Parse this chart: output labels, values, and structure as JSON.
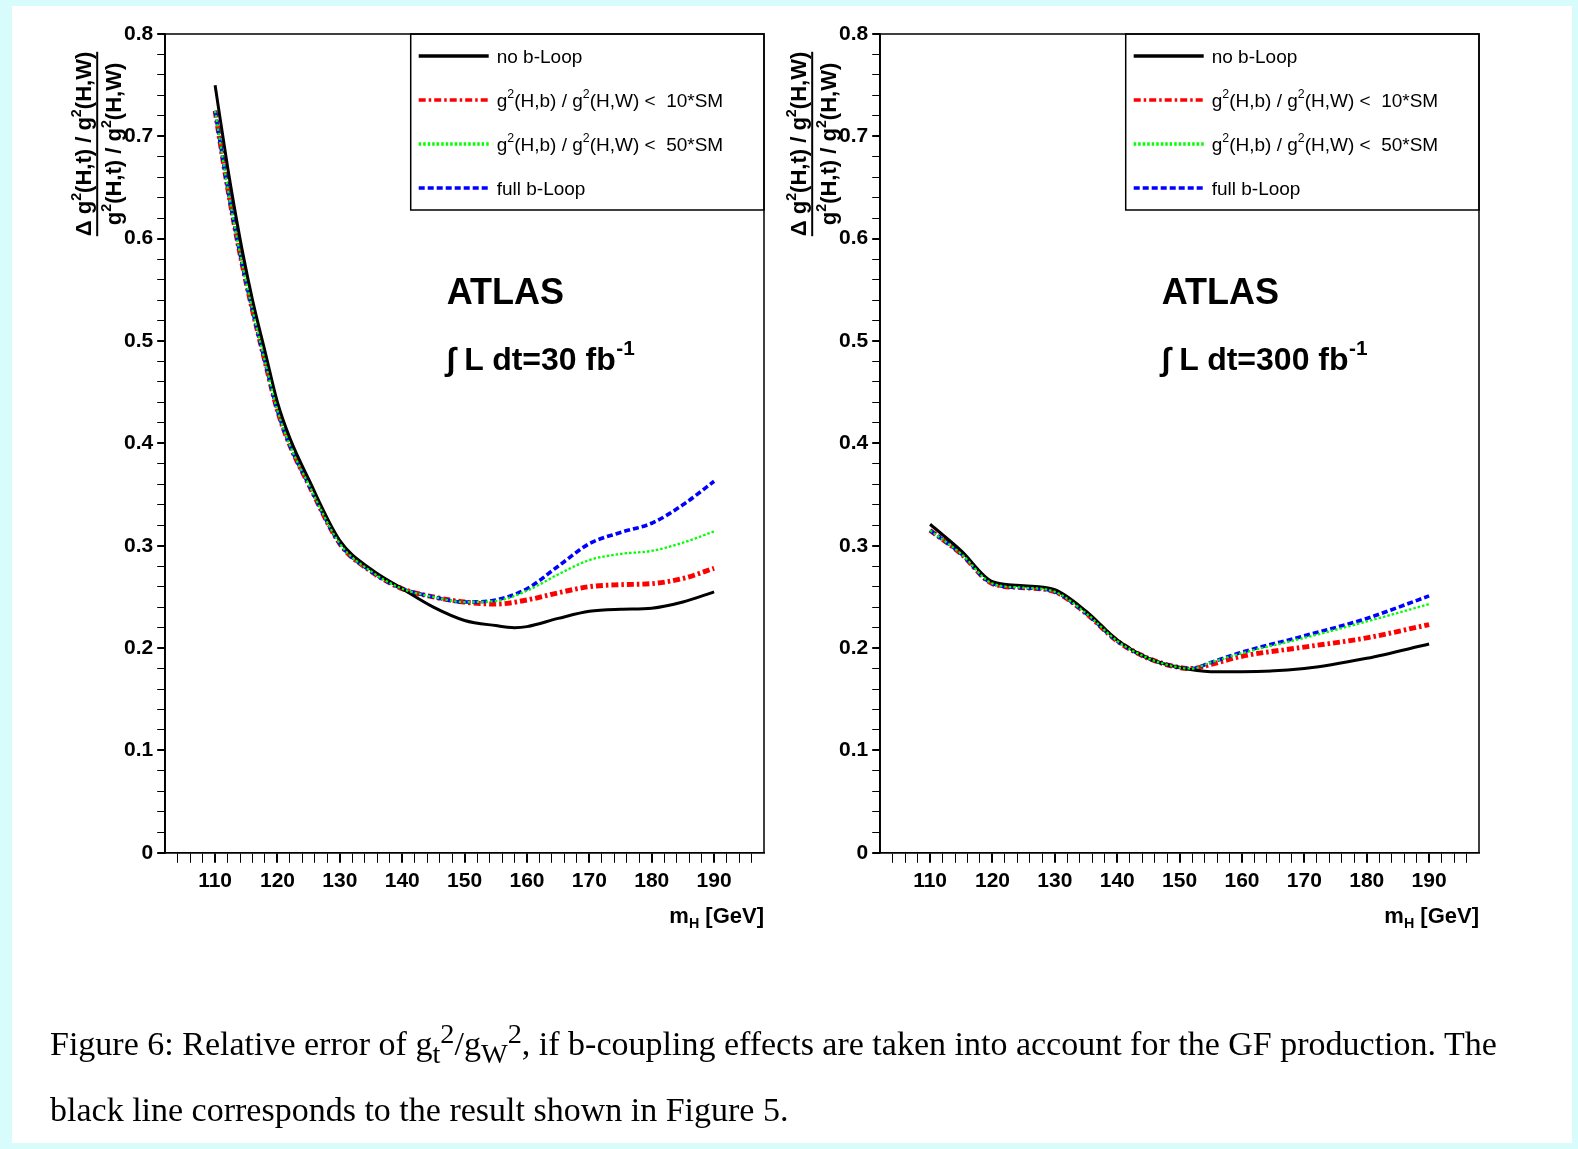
{
  "chart_data": [
    {
      "type": "line",
      "xlabel": "m$_{H}$ [GeV]",
      "ylabel": "Δ g$^{2}$(H,t) / g$^{2}$(H,W)\ng$^{2}$(H,t) / g$^{2}$(H,W)",
      "legend": "top right",
      "grid": false,
      "marker": "none",
      "xlim": [
        102,
        198
      ],
      "ylim": [
        0,
        0.8
      ],
      "xticks": [
        {
          "value": 104,
          "label": null
        },
        {
          "value": 106,
          "label": null
        },
        {
          "value": 108,
          "label": null
        },
        110,
        {
          "value": 112,
          "label": null
        },
        {
          "value": 114,
          "label": null
        },
        {
          "value": 116,
          "label": null
        },
        {
          "value": 118,
          "label": null
        },
        120,
        {
          "value": 122,
          "label": null
        },
        {
          "value": 124,
          "label": null
        },
        {
          "value": 126,
          "label": null
        },
        {
          "value": 128,
          "label": null
        },
        130,
        {
          "value": 132,
          "label": null
        },
        {
          "value": 134,
          "label": null
        },
        {
          "value": 136,
          "label": null
        },
        {
          "value": 138,
          "label": null
        },
        140,
        {
          "value": 142,
          "label": null
        },
        {
          "value": 144,
          "label": null
        },
        {
          "value": 146,
          "label": null
        },
        {
          "value": 148,
          "label": null
        },
        150,
        {
          "value": 152,
          "label": null
        },
        {
          "value": 154,
          "label": null
        },
        {
          "value": 156,
          "label": null
        },
        {
          "value": 158,
          "label": null
        },
        160,
        {
          "value": 162,
          "label": null
        },
        {
          "value": 164,
          "label": null
        },
        {
          "value": 166,
          "label": null
        },
        {
          "value": 168,
          "label": null
        },
        170,
        {
          "value": 172,
          "label": null
        },
        {
          "value": 174,
          "label": null
        },
        {
          "value": 176,
          "label": null
        },
        {
          "value": 178,
          "label": null
        },
        180,
        {
          "value": 182,
          "label": null
        },
        {
          "value": 184,
          "label": null
        },
        {
          "value": 186,
          "label": null
        },
        {
          "value": 188,
          "label": null
        },
        190,
        {
          "value": 192,
          "label": null
        },
        {
          "value": 194,
          "label": null
        },
        {
          "value": 196,
          "label": null
        }
      ],
      "yticks": [
        0,
        {
          "value": 0.02,
          "label": null
        },
        {
          "value": 0.04,
          "label": null
        },
        {
          "value": 0.06,
          "label": null
        },
        {
          "value": 0.08,
          "label": null
        },
        0.1,
        {
          "value": 0.12,
          "label": null
        },
        {
          "value": 0.14,
          "label": null
        },
        {
          "value": 0.16,
          "label": null
        },
        {
          "value": 0.18,
          "label": null
        },
        0.2,
        {
          "value": 0.22,
          "label": null
        },
        {
          "value": 0.24,
          "label": null
        },
        {
          "value": 0.26,
          "label": null
        },
        {
          "value": 0.28,
          "label": null
        },
        0.3,
        {
          "value": 0.32,
          "label": null
        },
        {
          "value": 0.34,
          "label": null
        },
        {
          "value": 0.36,
          "label": null
        },
        {
          "value": 0.38,
          "label": null
        },
        0.4,
        {
          "value": 0.42,
          "label": null
        },
        {
          "value": 0.44,
          "label": null
        },
        {
          "value": 0.46,
          "label": null
        },
        {
          "value": 0.48,
          "label": null
        },
        0.5,
        {
          "value": 0.52,
          "label": null
        },
        {
          "value": 0.54,
          "label": null
        },
        {
          "value": 0.56,
          "label": null
        },
        {
          "value": 0.58,
          "label": null
        },
        0.6,
        {
          "value": 0.62,
          "label": null
        },
        {
          "value": 0.64,
          "label": null
        },
        {
          "value": 0.66,
          "label": null
        },
        {
          "value": 0.68,
          "label": null
        },
        0.7,
        {
          "value": 0.72,
          "label": null
        },
        {
          "value": 0.74,
          "label": null
        },
        {
          "value": 0.76,
          "label": null
        },
        {
          "value": 0.78,
          "label": null
        },
        0.8
      ],
      "annotations": [
        "ATLAS",
        "∫ L dt=30 fb$^{-1}$",
        "Figure 6: Relative error of g$_{t}$$^{2}$/g$_{W}$$^{2}$, if b-coupling effects are taken into account for the GF production. The black line corresponds to the result shown in Figure 5."
      ],
      "series": [
        {
          "name": "no b-Loop",
          "color": "#000000",
          "line_style": "solid",
          "x": [
            110,
            112,
            114,
            116,
            118,
            120,
            122,
            125,
            130,
            135,
            140,
            145,
            150,
            155,
            158,
            160,
            165,
            170,
            175,
            180,
            185,
            190
          ],
          "values": [
            0.75,
            0.67,
            0.6,
            0.54,
            0.49,
            0.44,
            0.405,
            0.365,
            0.305,
            0.277,
            0.258,
            0.24,
            0.227,
            0.222,
            0.22,
            0.221,
            0.229,
            0.236,
            0.238,
            0.239,
            0.245,
            0.255
          ]
        },
        {
          "name": "g$^{2}$(H,b) / g$^{2}$(H,W) <  10*SM",
          "color": "#ff0000",
          "line_style": "dashdot",
          "x": [
            110,
            112,
            114,
            116,
            118,
            120,
            122,
            125,
            130,
            135,
            140,
            145,
            150,
            155,
            160,
            165,
            170,
            175,
            180,
            185,
            190
          ],
          "values": [
            0.725,
            0.65,
            0.585,
            0.53,
            0.48,
            0.432,
            0.398,
            0.36,
            0.302,
            0.275,
            0.258,
            0.25,
            0.245,
            0.243,
            0.247,
            0.254,
            0.26,
            0.262,
            0.263,
            0.268,
            0.278
          ]
        },
        {
          "name": "g$^{2}$(H,b) / g$^{2}$(H,W) <  50*SM",
          "color": "#00ff00",
          "line_style": "dotted",
          "x": [
            110,
            112,
            114,
            116,
            118,
            120,
            122,
            125,
            130,
            135,
            140,
            145,
            150,
            155,
            160,
            165,
            170,
            175,
            180,
            185,
            190
          ],
          "values": [
            0.725,
            0.65,
            0.585,
            0.53,
            0.48,
            0.432,
            0.398,
            0.36,
            0.302,
            0.275,
            0.258,
            0.25,
            0.245,
            0.246,
            0.256,
            0.272,
            0.286,
            0.292,
            0.295,
            0.303,
            0.314
          ]
        },
        {
          "name": "full b-Loop",
          "color": "#0000ff",
          "line_style": "dashed",
          "x": [
            110,
            112,
            114,
            116,
            118,
            120,
            122,
            125,
            130,
            135,
            140,
            145,
            150,
            155,
            160,
            165,
            170,
            175,
            180,
            185,
            190
          ],
          "values": [
            0.725,
            0.65,
            0.585,
            0.53,
            0.48,
            0.432,
            0.398,
            0.36,
            0.302,
            0.275,
            0.258,
            0.25,
            0.245,
            0.247,
            0.258,
            0.28,
            0.302,
            0.313,
            0.322,
            0.34,
            0.363
          ]
        }
      ]
    },
    {
      "type": "line",
      "xlabel": "m$_{H}$ [GeV]",
      "ylabel": "Δ g$^{2}$(H,t) / g$^{2}$(H,W)\ng$^{2}$(H,t) / g$^{2}$(H,W)",
      "legend": "top right",
      "grid": false,
      "marker": "none",
      "xlim": [
        102,
        198
      ],
      "ylim": [
        0,
        0.8
      ],
      "xticks": [
        {
          "value": 104,
          "label": null
        },
        {
          "value": 106,
          "label": null
        },
        {
          "value": 108,
          "label": null
        },
        110,
        {
          "value": 112,
          "label": null
        },
        {
          "value": 114,
          "label": null
        },
        {
          "value": 116,
          "label": null
        },
        {
          "value": 118,
          "label": null
        },
        120,
        {
          "value": 122,
          "label": null
        },
        {
          "value": 124,
          "label": null
        },
        {
          "value": 126,
          "label": null
        },
        {
          "value": 128,
          "label": null
        },
        130,
        {
          "value": 132,
          "label": null
        },
        {
          "value": 134,
          "label": null
        },
        {
          "value": 136,
          "label": null
        },
        {
          "value": 138,
          "label": null
        },
        140,
        {
          "value": 142,
          "label": null
        },
        {
          "value": 144,
          "label": null
        },
        {
          "value": 146,
          "label": null
        },
        {
          "value": 148,
          "label": null
        },
        150,
        {
          "value": 152,
          "label": null
        },
        {
          "value": 154,
          "label": null
        },
        {
          "value": 156,
          "label": null
        },
        {
          "value": 158,
          "label": null
        },
        160,
        {
          "value": 162,
          "label": null
        },
        {
          "value": 164,
          "label": null
        },
        {
          "value": 166,
          "label": null
        },
        {
          "value": 168,
          "label": null
        },
        170,
        {
          "value": 172,
          "label": null
        },
        {
          "value": 174,
          "label": null
        },
        {
          "value": 176,
          "label": null
        },
        {
          "value": 178,
          "label": null
        },
        180,
        {
          "value": 182,
          "label": null
        },
        {
          "value": 184,
          "label": null
        },
        {
          "value": 186,
          "label": null
        },
        {
          "value": 188,
          "label": null
        },
        190,
        {
          "value": 192,
          "label": null
        },
        {
          "value": 194,
          "label": null
        },
        {
          "value": 196,
          "label": null
        }
      ],
      "yticks": [
        0,
        {
          "value": 0.02,
          "label": null
        },
        {
          "value": 0.04,
          "label": null
        },
        {
          "value": 0.06,
          "label": null
        },
        {
          "value": 0.08,
          "label": null
        },
        0.1,
        {
          "value": 0.12,
          "label": null
        },
        {
          "value": 0.14,
          "label": null
        },
        {
          "value": 0.16,
          "label": null
        },
        {
          "value": 0.18,
          "label": null
        },
        0.2,
        {
          "value": 0.22,
          "label": null
        },
        {
          "value": 0.24,
          "label": null
        },
        {
          "value": 0.26,
          "label": null
        },
        {
          "value": 0.28,
          "label": null
        },
        0.3,
        {
          "value": 0.32,
          "label": null
        },
        {
          "value": 0.34,
          "label": null
        },
        {
          "value": 0.36,
          "label": null
        },
        {
          "value": 0.38,
          "label": null
        },
        0.4,
        {
          "value": 0.42,
          "label": null
        },
        {
          "value": 0.44,
          "label": null
        },
        {
          "value": 0.46,
          "label": null
        },
        {
          "value": 0.48,
          "label": null
        },
        0.5,
        {
          "value": 0.52,
          "label": null
        },
        {
          "value": 0.54,
          "label": null
        },
        {
          "value": 0.56,
          "label": null
        },
        {
          "value": 0.58,
          "label": null
        },
        0.6,
        {
          "value": 0.62,
          "label": null
        },
        {
          "value": 0.64,
          "label": null
        },
        {
          "value": 0.66,
          "label": null
        },
        {
          "value": 0.68,
          "label": null
        },
        0.7,
        {
          "value": 0.72,
          "label": null
        },
        {
          "value": 0.74,
          "label": null
        },
        {
          "value": 0.76,
          "label": null
        },
        {
          "value": 0.78,
          "label": null
        },
        0.8
      ],
      "annotations": [
        "ATLAS",
        "∫ L dt=300 fb$^{-1}$"
      ],
      "series": [
        {
          "name": "no b-Loop",
          "color": "#000000",
          "line_style": "solid",
          "x": [
            110,
            115,
            120,
            125,
            130,
            135,
            140,
            145,
            150,
            155,
            160,
            170,
            180,
            190
          ],
          "values": [
            0.321,
            0.295,
            0.265,
            0.261,
            0.257,
            0.236,
            0.208,
            0.19,
            0.181,
            0.177,
            0.177,
            0.18,
            0.19,
            0.204
          ]
        },
        {
          "name": "g$^{2}$(H,b) / g$^{2}$(H,W) <  10*SM",
          "color": "#ff0000",
          "line_style": "dashdot",
          "x": [
            110,
            115,
            120,
            125,
            130,
            135,
            140,
            145,
            150,
            152,
            155,
            160,
            170,
            180,
            190
          ],
          "values": [
            0.315,
            0.292,
            0.263,
            0.259,
            0.255,
            0.234,
            0.207,
            0.19,
            0.181,
            0.18,
            0.184,
            0.192,
            0.201,
            0.21,
            0.223
          ]
        },
        {
          "name": "g$^{2}$(H,b) / g$^{2}$(H,W) <  50*SM",
          "color": "#00ff00",
          "line_style": "dotted",
          "x": [
            110,
            115,
            120,
            125,
            130,
            135,
            140,
            145,
            150,
            152,
            155,
            160,
            170,
            180,
            190
          ],
          "values": [
            0.315,
            0.292,
            0.263,
            0.259,
            0.255,
            0.234,
            0.207,
            0.19,
            0.181,
            0.18,
            0.186,
            0.195,
            0.21,
            0.226,
            0.243
          ]
        },
        {
          "name": "full b-Loop",
          "color": "#0000ff",
          "line_style": "dashed",
          "x": [
            110,
            115,
            120,
            125,
            130,
            135,
            140,
            145,
            150,
            152,
            155,
            160,
            170,
            180,
            190
          ],
          "values": [
            0.315,
            0.292,
            0.263,
            0.259,
            0.255,
            0.234,
            0.207,
            0.19,
            0.181,
            0.18,
            0.186,
            0.196,
            0.212,
            0.229,
            0.251
          ]
        }
      ]
    }
  ]
}
